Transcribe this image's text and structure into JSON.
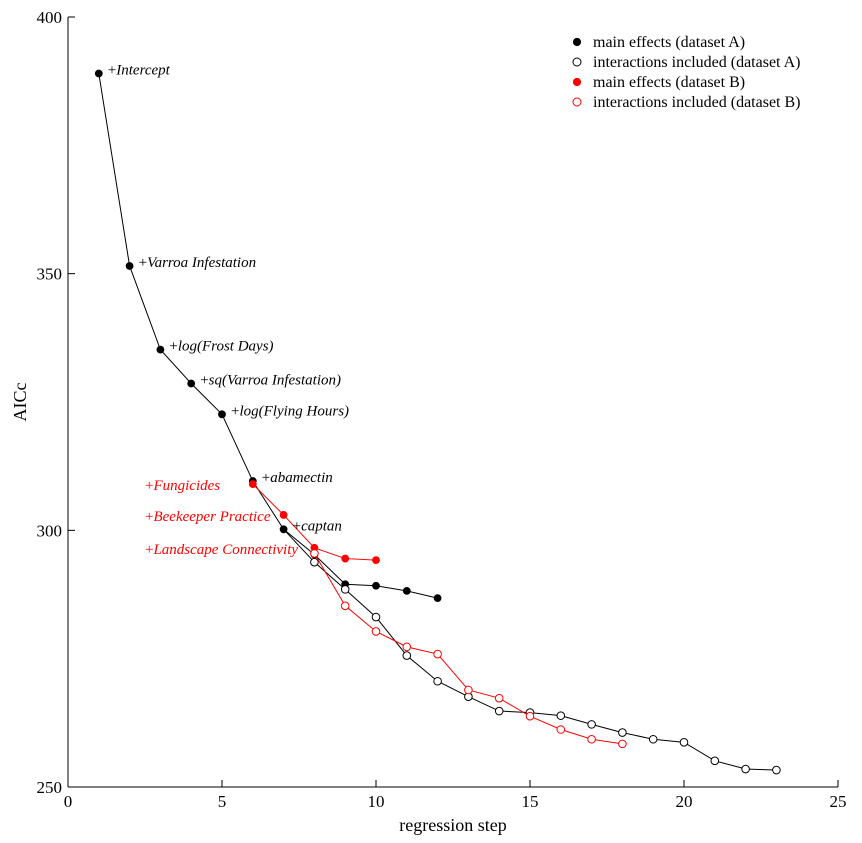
{
  "chart_data": {
    "type": "line",
    "title": "",
    "xlabel": "regression step",
    "ylabel": "AICc",
    "xlim": [
      0,
      25
    ],
    "ylim": [
      250,
      400
    ],
    "xticks": [
      0,
      5,
      10,
      15,
      20,
      25
    ],
    "yticks": [
      250,
      300,
      350,
      400
    ],
    "grid": false,
    "legend_position": "top-right",
    "series": [
      {
        "name": "main effects (dataset A)",
        "color": "#000000",
        "marker": "filled",
        "x": [
          1,
          2,
          3,
          4,
          5,
          6,
          7,
          8,
          9,
          10,
          11,
          12
        ],
        "y": [
          389,
          351.5,
          335.2,
          328.6,
          322.6,
          309.6,
          300.2,
          295.3,
          289.5,
          289.2,
          288.2,
          286.8
        ]
      },
      {
        "name": "interactions included (dataset A)",
        "color": "#000000",
        "marker": "open",
        "x": [
          8,
          9,
          10,
          11,
          12,
          13,
          14,
          15,
          16,
          17,
          18,
          19,
          20,
          21,
          22,
          23
        ],
        "y": [
          293.8,
          288.5,
          283.1,
          275.6,
          270.6,
          267.6,
          264.8,
          264.5,
          263.9,
          262.2,
          260.6,
          259.3,
          258.7,
          255.1,
          253.5,
          253.3
        ]
      },
      {
        "name": "main effects (dataset B)",
        "color": "#ff0000",
        "marker": "filled",
        "x": [
          6,
          7,
          8,
          9,
          10
        ],
        "y": [
          309,
          303,
          296.6,
          294.5,
          294.2
        ]
      },
      {
        "name": "interactions included (dataset B)",
        "color": "#ff0000",
        "marker": "open",
        "x": [
          8,
          9,
          10,
          11,
          12,
          13,
          14,
          15,
          16,
          17,
          18
        ],
        "y": [
          295.5,
          285.3,
          280.3,
          277.3,
          275.9,
          268.9,
          267.3,
          263.8,
          261.2,
          259.3,
          258.4
        ]
      }
    ],
    "connectors": [
      {
        "color": "#000000",
        "x": [
          7,
          8
        ],
        "y": [
          300.2,
          293.8
        ]
      },
      {
        "color": "#ff0000",
        "x": [
          8,
          8
        ],
        "y": [
          296.6,
          295.5
        ]
      }
    ],
    "annotations": [
      {
        "text": "Intercept",
        "x": 1,
        "y": 389,
        "color": "#000000",
        "italic": true
      },
      {
        "text": "Varroa Infestation",
        "x": 2,
        "y": 351.5,
        "color": "#000000",
        "italic": true
      },
      {
        "text": "log(Frost Days)",
        "x": 3,
        "y": 335.2,
        "color": "#000000",
        "italic": true
      },
      {
        "text": "sq(Varroa Infestation)",
        "x": 4,
        "y": 328.6,
        "color": "#000000",
        "italic": true
      },
      {
        "text": "log(Flying Hours)",
        "x": 5,
        "y": 322.6,
        "color": "#000000",
        "italic": true
      },
      {
        "text": "abamectin",
        "x": 6,
        "y": 309.6,
        "color": "#000000",
        "italic": true
      },
      {
        "text": "captan",
        "x": 7,
        "y": 300.2,
        "color": "#000000",
        "italic": true
      },
      {
        "text": "Fungicides",
        "x": 2.5,
        "y": 309,
        "color": "#ff0000",
        "italic": true
      },
      {
        "text": "Beekeeper Practice",
        "x": 2.5,
        "y": 303,
        "color": "#ff0000",
        "italic": true
      },
      {
        "text": "Landscape Connectivity",
        "x": 2.5,
        "y": 296.6,
        "color": "#ff0000",
        "italic": true
      }
    ]
  }
}
